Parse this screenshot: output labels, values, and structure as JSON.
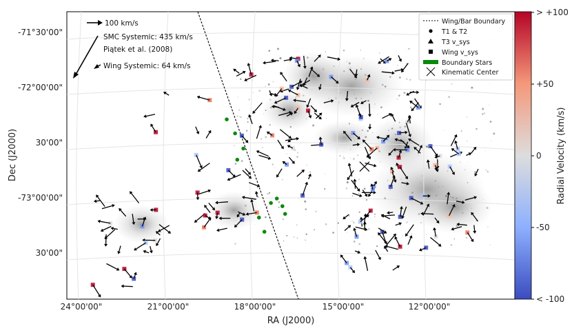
{
  "chart_data": {
    "type": "scatter",
    "title": "",
    "xlabel": "RA (J2000)",
    "ylabel": "Dec (J2000)",
    "x_ticks": [
      "24°00'00\"",
      "21°00'00\"",
      "18°00'00\"",
      "15°00'00\"",
      "12°00'00\""
    ],
    "y_ticks": [
      "-71°30'00\"",
      "-72°00'00\"",
      "30'00\"",
      "-73°00'00\"",
      "30'00\""
    ],
    "colorbar": {
      "label": "Radial Velocity (km/s)",
      "ticks": [
        "> +100",
        "+50",
        "0",
        "-50",
        "< -100"
      ],
      "range": [
        -100,
        100
      ],
      "colormap": "coolwarm",
      "low_color": "#3b4cc0",
      "mid_color": "#dddddd",
      "high_color": "#b40426"
    },
    "legend": {
      "position": "top-right",
      "entries": [
        "Wing/Bar Boundary",
        "T1 & T2",
        "T3 v_sys",
        "Wing v_sys",
        "Boundary Stars",
        "Kinematic Center"
      ]
    },
    "annotations": {
      "scale_arrow": "100 km/s",
      "smc_systemic": "SMC Systemic: 435 km/s",
      "reference": "Piątek et al. (2008)",
      "wing_systemic": "Wing Systemic: 64 km/s"
    },
    "kinematic_center": {
      "ra_deg": 14.2,
      "dec_deg": -72.68
    },
    "boundary_stars": [
      {
        "ra_deg": 19.0,
        "dec_deg": -72.25
      },
      {
        "ra_deg": 18.7,
        "dec_deg": -72.38
      },
      {
        "ra_deg": 18.4,
        "dec_deg": -72.52
      },
      {
        "ra_deg": 18.6,
        "dec_deg": -72.62
      },
      {
        "ra_deg": 17.2,
        "dec_deg": -72.98
      },
      {
        "ra_deg": 17.0,
        "dec_deg": -73.05
      },
      {
        "ra_deg": 16.9,
        "dec_deg": -73.12
      },
      {
        "ra_deg": 17.4,
        "dec_deg": -73.02
      },
      {
        "ra_deg": 17.6,
        "dec_deg": -73.28
      },
      {
        "ra_deg": 17.8,
        "dec_deg": -73.15
      }
    ]
  }
}
